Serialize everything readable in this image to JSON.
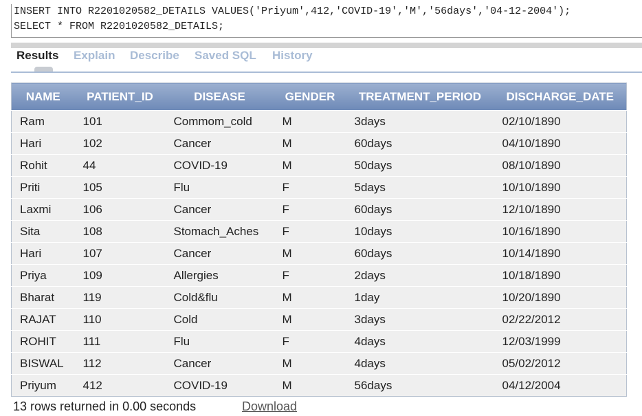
{
  "editor": {
    "lines": [
      "INSERT INTO R2201020582_DETAILS VALUES('Priyum',412,'COVID-19','M','56days','04-12-2004');",
      "SELECT * FROM R2201020582_DETAILS;"
    ]
  },
  "tabs": [
    "Results",
    "Explain",
    "Describe",
    "Saved SQL",
    "History"
  ],
  "table": {
    "headers": [
      "NAME",
      "PATIENT_ID",
      "DISEASE",
      "GENDER",
      "TREATMENT_PERIOD",
      "DISCHARGE_DATE"
    ],
    "rows": [
      [
        "Ram",
        "101",
        "Commom_cold",
        "M",
        "3days",
        "02/10/1890"
      ],
      [
        "Hari",
        "102",
        "Cancer",
        "M",
        "60days",
        "04/10/1890"
      ],
      [
        "Rohit",
        "44",
        "COVID-19",
        "M",
        "50days",
        "08/10/1890"
      ],
      [
        "Priti",
        "105",
        "Flu",
        "F",
        "5days",
        "10/10/1890"
      ],
      [
        "Laxmi",
        "106",
        "Cancer",
        "F",
        "60days",
        "12/10/1890"
      ],
      [
        "Sita",
        "108",
        "Stomach_Aches",
        "F",
        "10days",
        "10/16/1890"
      ],
      [
        "Hari",
        "107",
        "Cancer",
        "M",
        "60days",
        "10/14/1890"
      ],
      [
        "Priya",
        "109",
        "Allergies",
        "F",
        "2days",
        "10/18/1890"
      ],
      [
        "Bharat",
        "119",
        "Cold&flu",
        "M",
        "1day",
        "10/20/1890"
      ],
      [
        "RAJAT",
        "110",
        "Cold",
        "M",
        "3days",
        "02/22/2012"
      ],
      [
        "ROHIT",
        "111",
        "Flu",
        "F",
        "4days",
        "12/03/1999"
      ],
      [
        "BISWAL",
        "112",
        "Cancer",
        "M",
        "4days",
        "05/02/2012"
      ],
      [
        "Priyum",
        "412",
        "COVID-19",
        "M",
        "56days",
        "04/12/2004"
      ]
    ]
  },
  "footer": {
    "status": "13 rows returned in 0.00 seconds",
    "download": "Download"
  }
}
